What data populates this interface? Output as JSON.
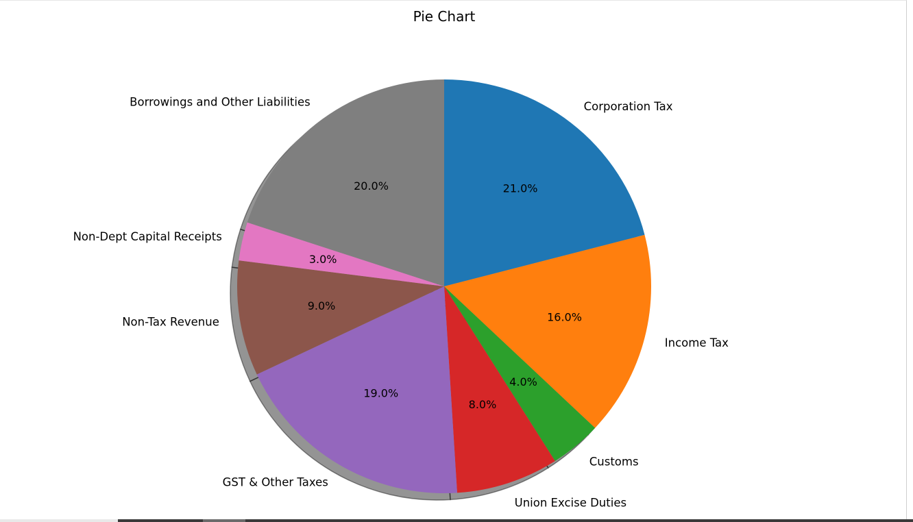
{
  "chart_data": {
    "type": "pie",
    "title": "Pie Chart",
    "shadow": true,
    "start_angle_deg": 90,
    "direction": "clockwise",
    "slices": [
      {
        "label": "Corporation Tax",
        "value": 21.0,
        "pct_text": "21.0%",
        "color": "#1f77b4"
      },
      {
        "label": "Income Tax",
        "value": 16.0,
        "pct_text": "16.0%",
        "color": "#ff7f0e"
      },
      {
        "label": "Customs",
        "value": 4.0,
        "pct_text": "4.0%",
        "color": "#2ca02c"
      },
      {
        "label": "Union Excise Duties",
        "value": 8.0,
        "pct_text": "8.0%",
        "color": "#d62728"
      },
      {
        "label": "GST & Other Taxes",
        "value": 19.0,
        "pct_text": "19.0%",
        "color": "#9467bd"
      },
      {
        "label": "Non-Tax Revenue",
        "value": 9.0,
        "pct_text": "9.0%",
        "color": "#8c564b"
      },
      {
        "label": "Non-Dept Capital Receipts",
        "value": 3.0,
        "pct_text": "3.0%",
        "color": "#e377c2"
      },
      {
        "label": "Borrowings and Other Liabilities",
        "value": 20.0,
        "pct_text": "20.0%",
        "color": "#7f7f7f"
      }
    ]
  }
}
